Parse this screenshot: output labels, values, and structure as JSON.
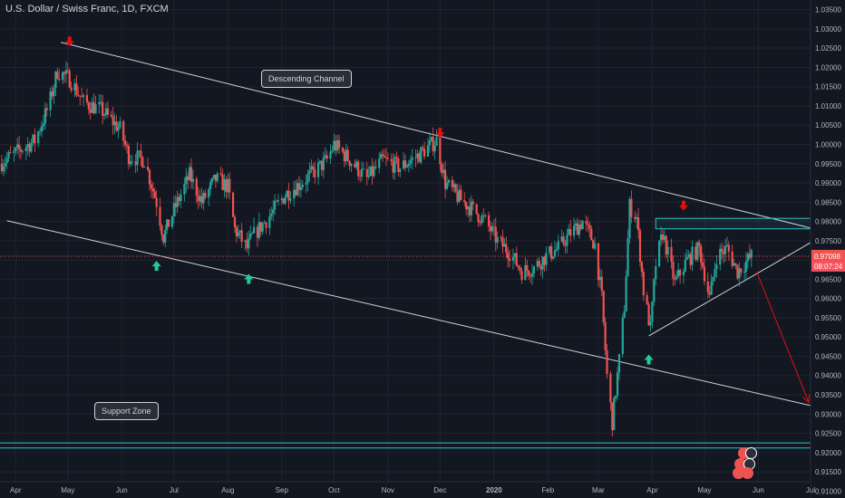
{
  "header": {
    "title": "U.S. Dollar / Swiss Franc, 1D, FXCM"
  },
  "annotations": {
    "channel": "Descending Channel",
    "support": "Support Zone"
  },
  "price_labels": {
    "current": "0.97098",
    "countdown": "08:07:24"
  },
  "colors": {
    "background": "#131722",
    "up": "#26a69a",
    "down": "#ef5350",
    "grid": "#1f2430",
    "line": "#d1d4dc",
    "support": "#2fc3c8",
    "arrow_down": "#e01010",
    "arrow_up": "#22cc99",
    "price_line": "#ef5350"
  },
  "chart_data": {
    "type": "candlestick",
    "symbol": "U.S. Dollar / Swiss Franc",
    "interval": "1D",
    "source": "FXCM",
    "x_tick_labels": [
      "Apr",
      "May",
      "Jun",
      "Jul",
      "Aug",
      "Sep",
      "Oct",
      "Nov",
      "Dec",
      "2020",
      "Feb",
      "Mar",
      "Apr",
      "May",
      "Jun",
      "Jul"
    ],
    "x_ticks": [
      "2019-04-01",
      "2019-05-01",
      "2019-06-01",
      "2019-07-01",
      "2019-08-01",
      "2019-09-01",
      "2019-10-01",
      "2019-11-01",
      "2019-12-01",
      "2020-01-01",
      "2020-02-01",
      "2020-03-01",
      "2020-04-01",
      "2020-05-01",
      "2020-06-01",
      "2020-07-01"
    ],
    "y_tick_labels": [
      "1.03500",
      "1.03000",
      "1.02500",
      "1.02000",
      "1.01500",
      "1.01000",
      "1.00500",
      "1.00000",
      "0.99500",
      "0.99000",
      "0.98500",
      "0.98000",
      "0.97500",
      "0.97000",
      "0.96500",
      "0.96000",
      "0.95500",
      "0.95000",
      "0.94500",
      "0.94000",
      "0.93500",
      "0.93000",
      "0.92500",
      "0.92000",
      "0.91500",
      "0.91000"
    ],
    "y_ticks": [
      1.035,
      1.03,
      1.025,
      1.02,
      1.015,
      1.01,
      1.005,
      1.0,
      0.995,
      0.99,
      0.985,
      0.98,
      0.975,
      0.97,
      0.965,
      0.96,
      0.955,
      0.95,
      0.945,
      0.94,
      0.935,
      0.93,
      0.925,
      0.92,
      0.915,
      0.91
    ],
    "ylim": [
      0.9082,
      1.0375
    ],
    "xlim": [
      "2019-03-23",
      "2020-07-01"
    ],
    "last_price": 0.97098,
    "close_path": [
      [
        "2019-03-23",
        0.995
      ],
      [
        "2019-04-05",
        0.999
      ],
      [
        "2019-04-12",
        1.001
      ],
      [
        "2019-04-20",
        1.01
      ],
      [
        "2019-04-25",
        1.019
      ],
      [
        "2019-05-02",
        1.017
      ],
      [
        "2019-05-10",
        1.011
      ],
      [
        "2019-05-20",
        1.009
      ],
      [
        "2019-05-31",
        1.004
      ],
      [
        "2019-06-05",
        0.997
      ],
      [
        "2019-06-14",
        0.996
      ],
      [
        "2019-06-21",
        0.985
      ],
      [
        "2019-06-25",
        0.976
      ],
      [
        "2019-07-02",
        0.984
      ],
      [
        "2019-07-10",
        0.992
      ],
      [
        "2019-07-17",
        0.985
      ],
      [
        "2019-07-25",
        0.991
      ],
      [
        "2019-08-01",
        0.989
      ],
      [
        "2019-08-05",
        0.978
      ],
      [
        "2019-08-12",
        0.973
      ],
      [
        "2019-08-15",
        0.976
      ],
      [
        "2019-08-26",
        0.982
      ],
      [
        "2019-09-03",
        0.987
      ],
      [
        "2019-09-12",
        0.99
      ],
      [
        "2019-09-20",
        0.993
      ],
      [
        "2019-09-27",
        0.996
      ],
      [
        "2019-10-01",
        1.0
      ],
      [
        "2019-10-10",
        0.996
      ],
      [
        "2019-10-20",
        0.991
      ],
      [
        "2019-10-29",
        0.996
      ],
      [
        "2019-11-08",
        0.994
      ],
      [
        "2019-11-18",
        0.997
      ],
      [
        "2019-11-29",
        1.001
      ],
      [
        "2019-12-04",
        0.99
      ],
      [
        "2019-12-12",
        0.986
      ],
      [
        "2019-12-20",
        0.983
      ],
      [
        "2019-12-27",
        0.98
      ],
      [
        "2020-01-03",
        0.975
      ],
      [
        "2020-01-10",
        0.972
      ],
      [
        "2020-01-17",
        0.967
      ],
      [
        "2020-01-24",
        0.968
      ],
      [
        "2020-01-31",
        0.971
      ],
      [
        "2020-02-07",
        0.973
      ],
      [
        "2020-02-14",
        0.977
      ],
      [
        "2020-02-21",
        0.98
      ],
      [
        "2020-02-28",
        0.974
      ],
      [
        "2020-03-03",
        0.96
      ],
      [
        "2020-03-06",
        0.94
      ],
      [
        "2020-03-09",
        0.928
      ],
      [
        "2020-03-13",
        0.944
      ],
      [
        "2020-03-16",
        0.958
      ],
      [
        "2020-03-19",
        0.984
      ],
      [
        "2020-03-23",
        0.981
      ],
      [
        "2020-03-27",
        0.962
      ],
      [
        "2020-03-31",
        0.952
      ],
      [
        "2020-04-03",
        0.969
      ],
      [
        "2020-04-07",
        0.977
      ],
      [
        "2020-04-14",
        0.964
      ],
      [
        "2020-04-21",
        0.97
      ],
      [
        "2020-04-28",
        0.973
      ],
      [
        "2020-05-04",
        0.96
      ],
      [
        "2020-05-08",
        0.971
      ],
      [
        "2020-05-14",
        0.973
      ],
      [
        "2020-05-20",
        0.967
      ],
      [
        "2020-05-28",
        0.971
      ]
    ],
    "drawings": {
      "channel_upper": [
        [
          "2019-04-27",
          1.0265
        ],
        [
          "2020-07-01",
          0.9783
        ]
      ],
      "channel_lower": [
        [
          "2019-03-27",
          0.9802
        ],
        [
          "2020-07-01",
          0.9322
        ]
      ],
      "triangle_base": [
        [
          "2020-03-30",
          0.9503
        ],
        [
          "2020-07-01",
          0.9745
        ]
      ],
      "resistance_box": [
        [
          "2020-04-03",
          0.9808
        ],
        [
          "2020-07-01",
          0.9795
        ]
      ],
      "support_zone": [
        0.9225,
        0.9212
      ],
      "projection": [
        [
          "2020-05-31",
          0.967
        ],
        [
          "2020-06-30",
          0.933
        ]
      ],
      "down_arrows": [
        [
          "2019-05-02",
          1.0266
        ],
        [
          "2019-12-01",
          1.0029
        ],
        [
          "2020-04-19",
          0.984
        ]
      ],
      "up_arrows": [
        [
          "2019-06-21",
          0.9686
        ],
        [
          "2019-08-13",
          0.9652
        ],
        [
          "2020-03-30",
          0.9443
        ]
      ]
    }
  }
}
